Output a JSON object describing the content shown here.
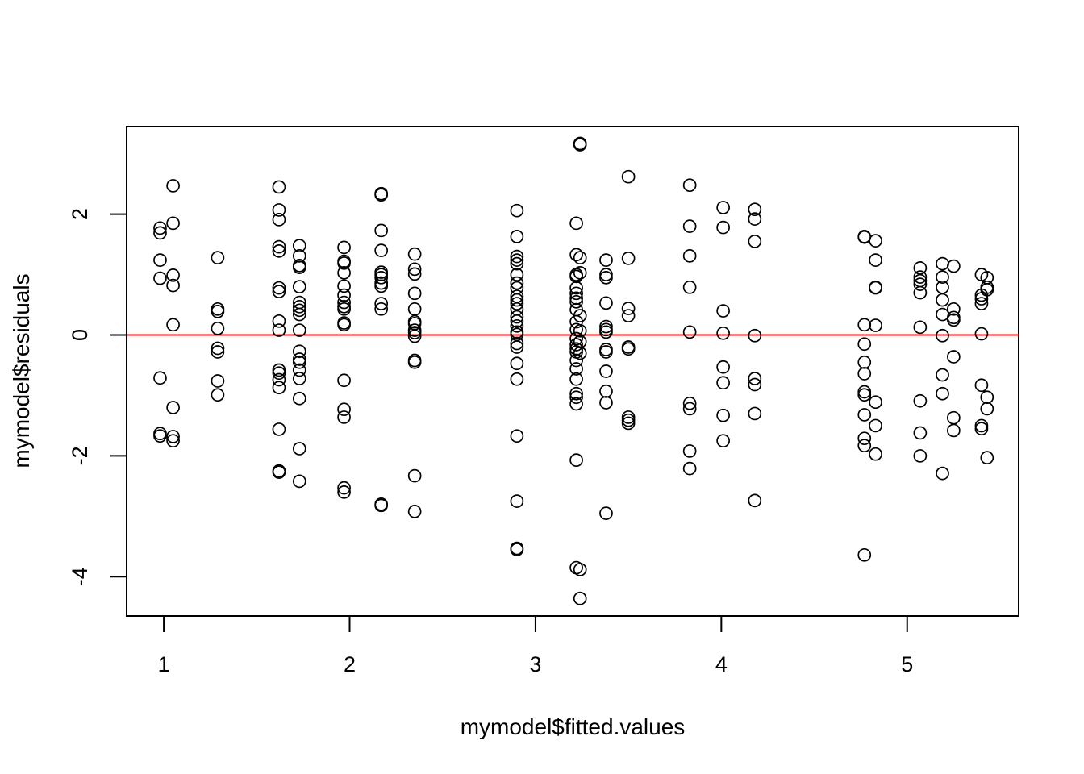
{
  "chart_data": {
    "type": "scatter",
    "title": "",
    "xlabel": "mymodel$fitted.values",
    "ylabel": "mymodel$residuals",
    "xlim": [
      0.8,
      5.6
    ],
    "ylim": [
      -4.65,
      3.45
    ],
    "x_ticks": [
      "1",
      "2",
      "3",
      "4",
      "5"
    ],
    "y_ticks": [
      "-4",
      "-2",
      "0",
      "2"
    ],
    "x_tick_values": [
      1,
      2,
      3,
      4,
      5
    ],
    "y_tick_values": [
      -4,
      -2,
      0,
      2
    ],
    "grid": false,
    "reference_line": {
      "y": 0,
      "color": "#ff0000"
    },
    "point_color": "#000000",
    "series": [
      {
        "points": [
          [
            0.98,
            1.77
          ],
          [
            0.98,
            1.69
          ],
          [
            0.98,
            1.24
          ],
          [
            0.98,
            0.94
          ],
          [
            0.98,
            -0.71
          ],
          [
            0.98,
            -1.63
          ],
          [
            0.98,
            -1.67
          ],
          [
            1.05,
            2.47
          ],
          [
            1.05,
            1.85
          ],
          [
            1.05,
            0.99
          ],
          [
            1.05,
            0.82
          ],
          [
            1.05,
            0.17
          ],
          [
            1.05,
            -1.2
          ],
          [
            1.05,
            -1.68
          ],
          [
            1.05,
            -1.75
          ],
          [
            1.29,
            1.28
          ],
          [
            1.29,
            0.43
          ],
          [
            1.29,
            0.39
          ],
          [
            1.29,
            0.11
          ],
          [
            1.29,
            -0.22
          ],
          [
            1.29,
            -0.28
          ],
          [
            1.29,
            -0.76
          ],
          [
            1.29,
            -0.99
          ],
          [
            1.62,
            2.45
          ],
          [
            1.62,
            2.07
          ],
          [
            1.62,
            1.91
          ],
          [
            1.62,
            1.46
          ],
          [
            1.62,
            1.39
          ],
          [
            1.62,
            0.78
          ],
          [
            1.62,
            0.72
          ],
          [
            1.62,
            0.23
          ],
          [
            1.62,
            0.08
          ],
          [
            1.62,
            -0.58
          ],
          [
            1.62,
            -0.63
          ],
          [
            1.62,
            -0.74
          ],
          [
            1.62,
            -0.87
          ],
          [
            1.62,
            -1.56
          ],
          [
            1.62,
            -2.25
          ],
          [
            1.62,
            -2.27
          ],
          [
            1.73,
            1.48
          ],
          [
            1.73,
            1.31
          ],
          [
            1.73,
            1.15
          ],
          [
            1.73,
            1.12
          ],
          [
            1.73,
            0.8
          ],
          [
            1.73,
            0.54
          ],
          [
            1.73,
            0.47
          ],
          [
            1.73,
            0.41
          ],
          [
            1.73,
            0.34
          ],
          [
            1.73,
            0.08
          ],
          [
            1.73,
            -0.27
          ],
          [
            1.73,
            -0.4
          ],
          [
            1.73,
            -0.45
          ],
          [
            1.73,
            -0.58
          ],
          [
            1.73,
            -0.72
          ],
          [
            1.73,
            -1.05
          ],
          [
            1.73,
            -1.88
          ],
          [
            1.73,
            -2.42
          ],
          [
            1.97,
            1.45
          ],
          [
            1.97,
            1.22
          ],
          [
            1.97,
            1.19
          ],
          [
            1.97,
            1.03
          ],
          [
            1.97,
            0.81
          ],
          [
            1.97,
            0.66
          ],
          [
            1.97,
            0.54
          ],
          [
            1.97,
            0.47
          ],
          [
            1.97,
            0.43
          ],
          [
            1.97,
            0.2
          ],
          [
            1.97,
            0.17
          ],
          [
            1.97,
            -0.75
          ],
          [
            1.97,
            -1.23
          ],
          [
            1.97,
            -1.36
          ],
          [
            1.97,
            -2.53
          ],
          [
            1.97,
            -2.6
          ],
          [
            2.17,
            2.34
          ],
          [
            2.17,
            2.32
          ],
          [
            2.17,
            1.73
          ],
          [
            2.17,
            1.4
          ],
          [
            2.17,
            1.04
          ],
          [
            2.17,
            1.0
          ],
          [
            2.17,
            0.95
          ],
          [
            2.17,
            0.86
          ],
          [
            2.17,
            0.81
          ],
          [
            2.17,
            0.52
          ],
          [
            2.17,
            0.43
          ],
          [
            2.17,
            -2.8
          ],
          [
            2.17,
            -2.82
          ],
          [
            2.35,
            1.34
          ],
          [
            2.35,
            1.09
          ],
          [
            2.35,
            1.01
          ],
          [
            2.35,
            0.69
          ],
          [
            2.35,
            0.43
          ],
          [
            2.35,
            0.22
          ],
          [
            2.35,
            0.19
          ],
          [
            2.35,
            0.08
          ],
          [
            2.35,
            0.04
          ],
          [
            2.35,
            -0.02
          ],
          [
            2.35,
            -0.42
          ],
          [
            2.35,
            -0.45
          ],
          [
            2.35,
            -2.33
          ],
          [
            2.35,
            -2.92
          ],
          [
            2.9,
            2.06
          ],
          [
            2.9,
            1.63
          ],
          [
            2.9,
            1.3
          ],
          [
            2.9,
            1.24
          ],
          [
            2.9,
            1.18
          ],
          [
            2.9,
            1.0
          ],
          [
            2.9,
            0.86
          ],
          [
            2.9,
            0.78
          ],
          [
            2.9,
            0.64
          ],
          [
            2.9,
            0.58
          ],
          [
            2.9,
            0.52
          ],
          [
            2.9,
            0.43
          ],
          [
            2.9,
            0.3
          ],
          [
            2.9,
            0.23
          ],
          [
            2.9,
            0.15
          ],
          [
            2.9,
            0.05
          ],
          [
            2.9,
            0.01
          ],
          [
            2.9,
            -0.14
          ],
          [
            2.9,
            -0.2
          ],
          [
            2.9,
            -0.47
          ],
          [
            2.9,
            -0.73
          ],
          [
            2.9,
            -1.67
          ],
          [
            2.9,
            -2.75
          ],
          [
            2.9,
            -3.53
          ],
          [
            2.9,
            -3.55
          ],
          [
            3.22,
            1.85
          ],
          [
            3.22,
            1.33
          ],
          [
            3.22,
            1.0
          ],
          [
            3.22,
            0.97
          ],
          [
            3.22,
            0.78
          ],
          [
            3.22,
            0.69
          ],
          [
            3.22,
            0.61
          ],
          [
            3.22,
            0.55
          ],
          [
            3.22,
            0.42
          ],
          [
            3.22,
            0.22
          ],
          [
            3.22,
            0.09
          ],
          [
            3.22,
            -0.06
          ],
          [
            3.22,
            -0.16
          ],
          [
            3.22,
            -0.23
          ],
          [
            3.22,
            -0.28
          ],
          [
            3.22,
            -0.42
          ],
          [
            3.22,
            -0.56
          ],
          [
            3.22,
            -0.73
          ],
          [
            3.22,
            -0.97
          ],
          [
            3.22,
            -1.03
          ],
          [
            3.22,
            -1.14
          ],
          [
            3.22,
            -2.07
          ],
          [
            3.22,
            -3.85
          ],
          [
            3.24,
            3.17
          ],
          [
            3.24,
            3.15
          ],
          [
            3.24,
            1.28
          ],
          [
            3.24,
            1.03
          ],
          [
            3.24,
            0.32
          ],
          [
            3.24,
            0.07
          ],
          [
            3.24,
            -0.11
          ],
          [
            3.24,
            -0.3
          ],
          [
            3.24,
            -3.88
          ],
          [
            3.24,
            -4.36
          ],
          [
            3.38,
            1.24
          ],
          [
            3.38,
            1.0
          ],
          [
            3.38,
            0.95
          ],
          [
            3.38,
            0.53
          ],
          [
            3.38,
            0.14
          ],
          [
            3.38,
            0.09
          ],
          [
            3.38,
            0.05
          ],
          [
            3.38,
            -0.24
          ],
          [
            3.38,
            -0.28
          ],
          [
            3.38,
            -0.6
          ],
          [
            3.38,
            -0.93
          ],
          [
            3.38,
            -1.12
          ],
          [
            3.38,
            -2.95
          ],
          [
            3.5,
            2.62
          ],
          [
            3.5,
            1.27
          ],
          [
            3.5,
            0.44
          ],
          [
            3.5,
            0.32
          ],
          [
            3.5,
            -0.2
          ],
          [
            3.5,
            -0.23
          ],
          [
            3.5,
            -1.36
          ],
          [
            3.5,
            -1.41
          ],
          [
            3.5,
            -1.46
          ],
          [
            3.83,
            2.48
          ],
          [
            3.83,
            1.8
          ],
          [
            3.83,
            1.31
          ],
          [
            3.83,
            0.79
          ],
          [
            3.83,
            0.05
          ],
          [
            3.83,
            -1.13
          ],
          [
            3.83,
            -1.22
          ],
          [
            3.83,
            -1.92
          ],
          [
            3.83,
            -2.21
          ],
          [
            4.01,
            2.11
          ],
          [
            4.01,
            1.78
          ],
          [
            4.01,
            0.4
          ],
          [
            4.01,
            0.03
          ],
          [
            4.01,
            -0.53
          ],
          [
            4.01,
            -0.79
          ],
          [
            4.01,
            -1.33
          ],
          [
            4.01,
            -1.75
          ],
          [
            4.18,
            2.08
          ],
          [
            4.18,
            1.92
          ],
          [
            4.18,
            1.55
          ],
          [
            4.18,
            -0.01
          ],
          [
            4.18,
            -0.72
          ],
          [
            4.18,
            -0.82
          ],
          [
            4.18,
            -1.3
          ],
          [
            4.18,
            -2.74
          ],
          [
            4.77,
            1.63
          ],
          [
            4.77,
            1.62
          ],
          [
            4.77,
            0.17
          ],
          [
            4.77,
            -0.15
          ],
          [
            4.77,
            -0.45
          ],
          [
            4.77,
            -0.64
          ],
          [
            4.77,
            -0.94
          ],
          [
            4.77,
            -0.99
          ],
          [
            4.77,
            -1.32
          ],
          [
            4.77,
            -1.71
          ],
          [
            4.77,
            -1.83
          ],
          [
            4.77,
            -3.64
          ],
          [
            4.83,
            1.56
          ],
          [
            4.83,
            1.24
          ],
          [
            4.83,
            0.79
          ],
          [
            4.83,
            0.78
          ],
          [
            4.83,
            0.16
          ],
          [
            4.83,
            -1.11
          ],
          [
            4.83,
            -1.5
          ],
          [
            4.83,
            -1.97
          ],
          [
            5.07,
            1.11
          ],
          [
            5.07,
            0.96
          ],
          [
            5.07,
            0.9
          ],
          [
            5.07,
            0.84
          ],
          [
            5.07,
            0.7
          ],
          [
            5.07,
            0.13
          ],
          [
            5.07,
            -1.09
          ],
          [
            5.07,
            -1.62
          ],
          [
            5.07,
            -2.0
          ],
          [
            5.19,
            1.18
          ],
          [
            5.19,
            0.96
          ],
          [
            5.19,
            0.79
          ],
          [
            5.19,
            0.58
          ],
          [
            5.19,
            0.34
          ],
          [
            5.19,
            -0.01
          ],
          [
            5.19,
            -0.66
          ],
          [
            5.19,
            -0.97
          ],
          [
            5.19,
            -2.29
          ],
          [
            5.25,
            1.14
          ],
          [
            5.25,
            0.43
          ],
          [
            5.25,
            0.29
          ],
          [
            5.25,
            0.25
          ],
          [
            5.25,
            -0.36
          ],
          [
            5.25,
            -1.37
          ],
          [
            5.25,
            -1.58
          ],
          [
            5.4,
            1.0
          ],
          [
            5.4,
            0.66
          ],
          [
            5.4,
            0.6
          ],
          [
            5.4,
            0.52
          ],
          [
            5.4,
            0.02
          ],
          [
            5.4,
            -0.83
          ],
          [
            5.4,
            -1.5
          ],
          [
            5.4,
            -1.55
          ],
          [
            5.43,
            0.95
          ],
          [
            5.43,
            0.79
          ],
          [
            5.43,
            0.75
          ],
          [
            5.43,
            -1.03
          ],
          [
            5.43,
            -1.22
          ],
          [
            5.43,
            -2.03
          ]
        ]
      }
    ]
  }
}
